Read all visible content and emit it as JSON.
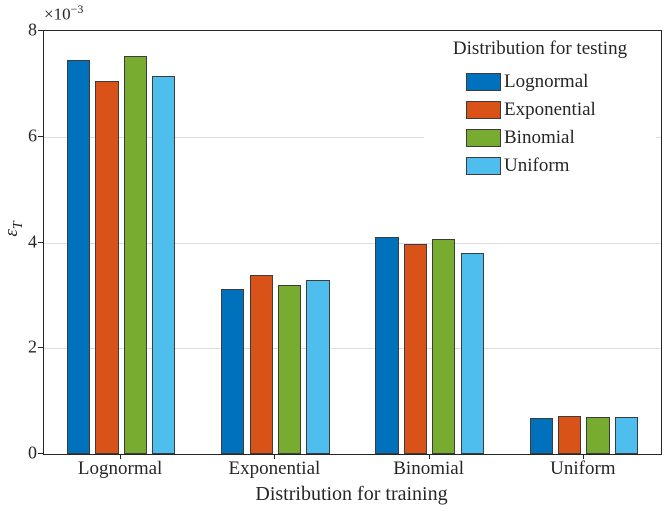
{
  "figure": {
    "background": "#ffffff",
    "text_color": "#262626",
    "grid_color": "#dedede",
    "axis_color": "#262626",
    "bar_edge_color": "#3c3c3c"
  },
  "axes": {
    "ylabel_symbol": "ε",
    "ylabel_subscript": "T",
    "y_multiplier_base": "×10",
    "y_multiplier_exponent": "−3"
  },
  "chart_data": {
    "type": "bar",
    "title": "",
    "xlabel": "Distribution for training",
    "ylabel": "epsilon_T",
    "y_unit_multiplier": "1e-3",
    "legend_title": "Distribution for testing",
    "legend_position": "top-right-inside",
    "grid": "horizontal",
    "ylim": [
      0,
      8
    ],
    "yticks": [
      0,
      2,
      4,
      6,
      8
    ],
    "categories": [
      "Lognormal",
      "Exponential",
      "Binomial",
      "Uniform"
    ],
    "series": [
      {
        "name": "Lognormal",
        "color": "#0072BD",
        "values": [
          7.45,
          3.12,
          4.1,
          0.68
        ]
      },
      {
        "name": "Exponential",
        "color": "#D95319",
        "values": [
          7.05,
          3.38,
          3.97,
          0.72
        ]
      },
      {
        "name": "Binomial",
        "color": "#77AC30",
        "values": [
          7.52,
          3.2,
          4.07,
          0.7
        ]
      },
      {
        "name": "Uniform",
        "color": "#4DBEEE",
        "values": [
          7.14,
          3.3,
          3.8,
          0.7
        ]
      }
    ]
  }
}
